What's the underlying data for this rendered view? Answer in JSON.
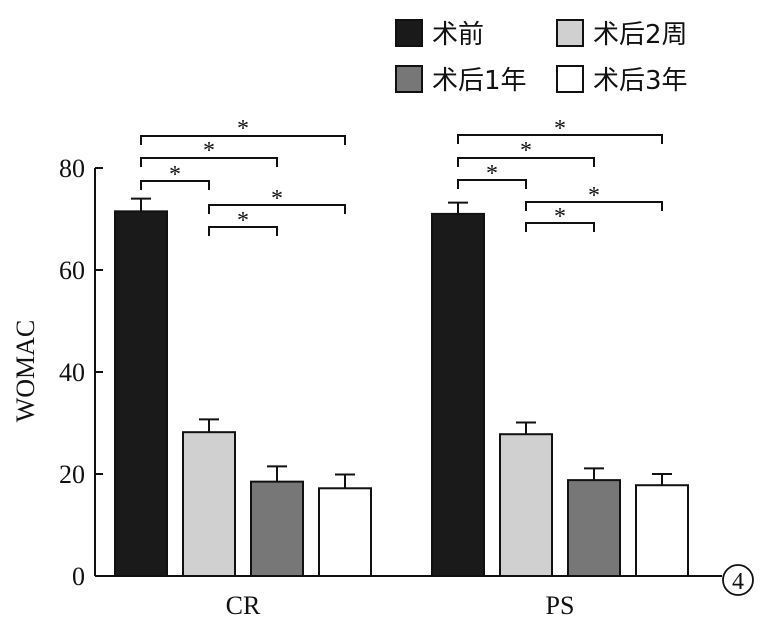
{
  "chart_data": {
    "type": "bar",
    "title": "",
    "xlabel": "",
    "ylabel": "WOMAC",
    "ylim": [
      0,
      80
    ],
    "yticks": [
      0,
      20,
      40,
      60,
      80
    ],
    "categories": [
      "CR",
      "PS"
    ],
    "series": [
      {
        "name": "术前",
        "values": [
          71.5,
          71.0
        ],
        "errors": [
          2.5,
          2.2
        ],
        "color": "#1a1a1a"
      },
      {
        "name": "术后2周",
        "values": [
          28.2,
          27.8
        ],
        "errors": [
          2.5,
          2.3
        ],
        "color": "#d0d0d0"
      },
      {
        "name": "术后1年",
        "values": [
          18.5,
          18.8
        ],
        "errors": [
          3.0,
          2.3
        ],
        "color": "#777777"
      },
      {
        "name": "术后3年",
        "values": [
          17.2,
          17.8
        ],
        "errors": [
          2.7,
          2.2
        ],
        "color": "#ffffff"
      }
    ],
    "significance": [
      {
        "from": 0,
        "to": 1,
        "label": "*"
      },
      {
        "from": 0,
        "to": 2,
        "label": "*"
      },
      {
        "from": 0,
        "to": 3,
        "label": "*"
      },
      {
        "from": 1,
        "to": 2,
        "label": "*"
      },
      {
        "from": 1,
        "to": 3,
        "label": "*"
      }
    ],
    "legend_position": "top-right",
    "grid": false,
    "panel_label": "4"
  }
}
